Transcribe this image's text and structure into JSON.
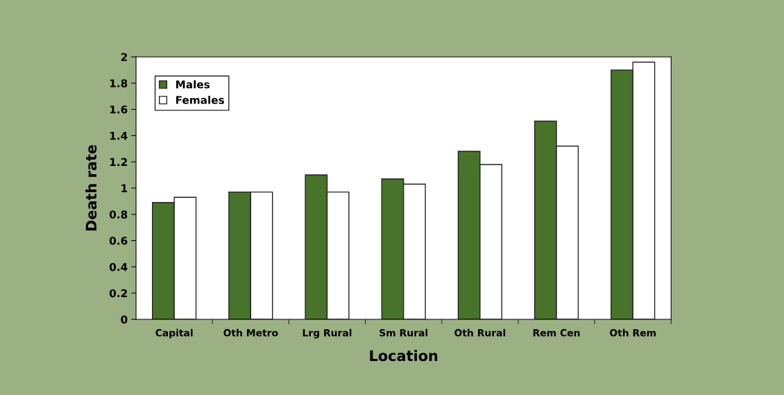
{
  "chart_data": {
    "type": "bar",
    "xlabel": "Location",
    "ylabel": "Death rate",
    "categories": [
      "Capital",
      "Oth Metro",
      "Lrg Rural",
      "Sm Rural",
      "Oth Rural",
      "Rem Cen",
      "Oth Rem"
    ],
    "series": [
      {
        "name": "Males",
        "color": "#48732a",
        "values": [
          0.89,
          0.97,
          1.1,
          1.07,
          1.28,
          1.51,
          1.9
        ]
      },
      {
        "name": "Females",
        "color": "#ffffff",
        "values": [
          0.93,
          0.97,
          0.97,
          1.03,
          1.18,
          1.32,
          1.96
        ]
      }
    ],
    "ylim": [
      0,
      2
    ],
    "yticks": [
      0,
      0.2,
      0.4,
      0.6,
      0.8,
      1,
      1.2,
      1.4,
      1.6,
      1.8,
      2
    ],
    "grid": false,
    "legend": "top left"
  }
}
